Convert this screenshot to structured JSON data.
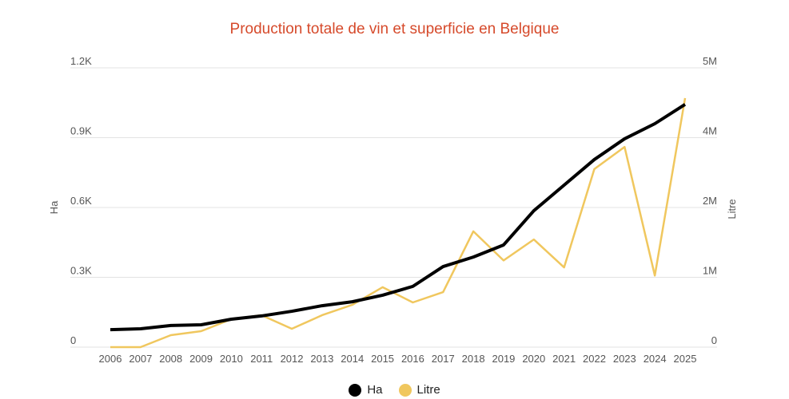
{
  "chart_data": {
    "type": "line",
    "title": "Production totale de vin et superficie en Belgique",
    "x": [
      "2006",
      "2007",
      "2008",
      "2009",
      "2010",
      "2011",
      "2012",
      "2013",
      "2014",
      "2015",
      "2016",
      "2017",
      "2018",
      "2019",
      "2020",
      "2021",
      "2022",
      "2023",
      "2024",
      "2025"
    ],
    "series": [
      {
        "name": "Ha",
        "axis": "left",
        "color": "#000000",
        "values": [
          75,
          79,
          93,
          96,
          120,
          134,
          154,
          178,
          195,
          223,
          261,
          346,
          387,
          439,
          586,
          696,
          806,
          895,
          960,
          1043
        ]
      },
      {
        "name": "Litre",
        "axis": "right",
        "color": "#f0c75e",
        "values": [
          0,
          0,
          206000,
          274000,
          480000,
          549000,
          315000,
          549000,
          727000,
          1030000,
          768000,
          946000,
          1990000,
          1490000,
          1850000,
          1370000,
          3060000,
          3440000,
          1230000,
          4280000
        ]
      }
    ],
    "yleft": {
      "label": "Ha",
      "ylim": [
        0,
        1200
      ],
      "ticks": [
        0,
        300,
        600,
        900,
        1200
      ],
      "tick_labels": [
        "0",
        "0.3K",
        "0.6K",
        "0.9K",
        "1.2K"
      ]
    },
    "yright": {
      "label": "Litre",
      "ylim": [
        0,
        4800000
      ],
      "ticks": [
        0,
        1200000,
        2400000,
        3600000,
        4800000
      ],
      "tick_labels": [
        "0",
        "1M",
        "2M",
        "4M",
        "5M"
      ]
    },
    "grid": true,
    "legend": "bottom-center"
  }
}
